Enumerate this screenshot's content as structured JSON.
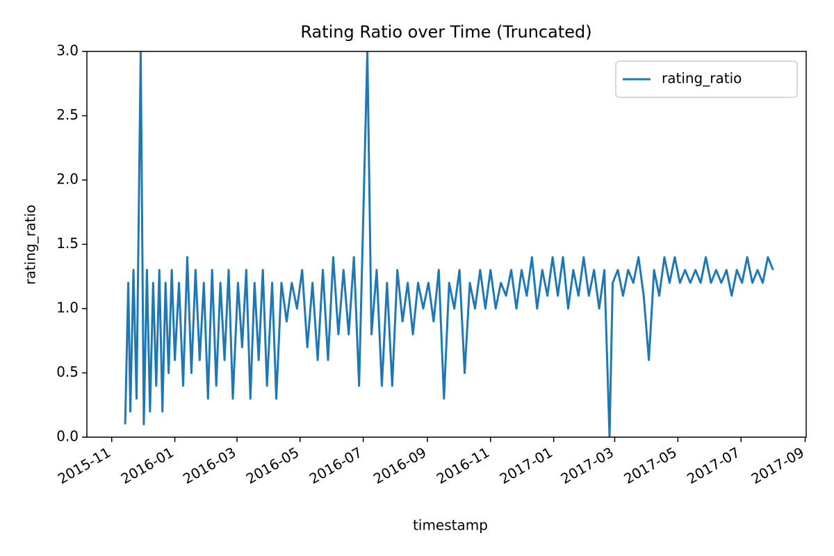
{
  "chart_data": {
    "type": "line",
    "title": "Rating Ratio over Time (Truncated)",
    "x_label": "timestamp",
    "y_label": "rating_ratio",
    "x": [
      "2015-11-14",
      "2015-11-17",
      "2015-11-19",
      "2015-11-22",
      "2015-11-25",
      "2015-11-29",
      "2015-12-02",
      "2015-12-05",
      "2015-12-08",
      "2015-12-11",
      "2015-12-14",
      "2015-12-17",
      "2015-12-20",
      "2015-12-23",
      "2015-12-26",
      "2015-12-29",
      "2016-01-01",
      "2016-01-05",
      "2016-01-09",
      "2016-01-13",
      "2016-01-17",
      "2016-01-21",
      "2016-01-25",
      "2016-01-29",
      "2016-02-02",
      "2016-02-06",
      "2016-02-10",
      "2016-02-14",
      "2016-02-18",
      "2016-02-22",
      "2016-02-26",
      "2016-03-02",
      "2016-03-06",
      "2016-03-10",
      "2016-03-14",
      "2016-03-18",
      "2016-03-22",
      "2016-03-26",
      "2016-03-30",
      "2016-04-04",
      "2016-04-08",
      "2016-04-13",
      "2016-04-18",
      "2016-04-23",
      "2016-04-28",
      "2016-05-03",
      "2016-05-08",
      "2016-05-13",
      "2016-05-18",
      "2016-05-23",
      "2016-05-28",
      "2016-06-02",
      "2016-06-07",
      "2016-06-12",
      "2016-06-17",
      "2016-06-22",
      "2016-06-27",
      "2016-07-05",
      "2016-07-09",
      "2016-07-14",
      "2016-07-19",
      "2016-07-24",
      "2016-07-29",
      "2016-08-03",
      "2016-08-08",
      "2016-08-13",
      "2016-08-18",
      "2016-08-23",
      "2016-08-28",
      "2016-09-02",
      "2016-09-07",
      "2016-09-12",
      "2016-09-17",
      "2016-09-22",
      "2016-09-27",
      "2016-10-02",
      "2016-10-07",
      "2016-10-12",
      "2016-10-17",
      "2016-10-22",
      "2016-10-27",
      "2016-11-01",
      "2016-11-06",
      "2016-11-11",
      "2016-11-16",
      "2016-11-21",
      "2016-11-26",
      "2016-12-01",
      "2016-12-06",
      "2016-12-11",
      "2016-12-16",
      "2016-12-21",
      "2016-12-26",
      "2016-12-31",
      "2017-01-05",
      "2017-01-10",
      "2017-01-15",
      "2017-01-20",
      "2017-01-25",
      "2017-01-30",
      "2017-02-04",
      "2017-02-09",
      "2017-02-14",
      "2017-02-19",
      "2017-02-24",
      "2017-02-27",
      "2017-03-04",
      "2017-03-09",
      "2017-03-14",
      "2017-03-19",
      "2017-03-24",
      "2017-03-29",
      "2017-04-03",
      "2017-04-08",
      "2017-04-13",
      "2017-04-18",
      "2017-04-23",
      "2017-04-28",
      "2017-05-03",
      "2017-05-08",
      "2017-05-13",
      "2017-05-18",
      "2017-05-23",
      "2017-05-28",
      "2017-06-02",
      "2017-06-07",
      "2017-06-12",
      "2017-06-17",
      "2017-06-22",
      "2017-06-27",
      "2017-07-02",
      "2017-07-07",
      "2017-07-12",
      "2017-07-17",
      "2017-07-22",
      "2017-07-27",
      "2017-08-01"
    ],
    "series": [
      {
        "name": "rating_ratio",
        "color": "#1f77b4",
        "values": [
          0.1,
          1.2,
          0.2,
          1.3,
          0.3,
          3.0,
          0.1,
          1.3,
          0.2,
          1.2,
          0.4,
          1.3,
          0.2,
          1.2,
          0.5,
          1.3,
          0.6,
          1.2,
          0.4,
          1.4,
          0.5,
          1.3,
          0.6,
          1.2,
          0.3,
          1.3,
          0.4,
          1.2,
          0.6,
          1.3,
          0.3,
          1.2,
          0.7,
          1.3,
          0.3,
          1.2,
          0.6,
          1.3,
          0.4,
          1.2,
          0.3,
          1.2,
          0.9,
          1.2,
          1.0,
          1.3,
          0.7,
          1.2,
          0.6,
          1.3,
          0.6,
          1.4,
          0.8,
          1.3,
          0.8,
          1.4,
          0.4,
          3.0,
          0.8,
          1.3,
          0.4,
          1.2,
          0.4,
          1.3,
          0.9,
          1.2,
          0.8,
          1.2,
          1.0,
          1.2,
          0.9,
          1.3,
          0.3,
          1.2,
          1.0,
          1.3,
          0.5,
          1.2,
          1.0,
          1.3,
          1.0,
          1.3,
          1.0,
          1.2,
          1.1,
          1.3,
          1.0,
          1.3,
          1.1,
          1.4,
          1.0,
          1.3,
          1.1,
          1.4,
          1.1,
          1.4,
          1.0,
          1.3,
          1.1,
          1.4,
          1.1,
          1.3,
          1.0,
          1.3,
          0.0,
          1.2,
          1.3,
          1.1,
          1.3,
          1.2,
          1.4,
          1.1,
          0.6,
          1.3,
          1.1,
          1.4,
          1.2,
          1.4,
          1.2,
          1.3,
          1.2,
          1.3,
          1.2,
          1.4,
          1.2,
          1.3,
          1.2,
          1.3,
          1.1,
          1.3,
          1.2,
          1.4,
          1.2,
          1.3,
          1.2,
          1.4,
          1.3
        ]
      }
    ],
    "xlim": [
      "2015-10-08",
      "2017-09-02"
    ],
    "xticks": [
      "2015-11",
      "2016-01",
      "2016-03",
      "2016-05",
      "2016-07",
      "2016-09",
      "2016-11",
      "2017-01",
      "2017-03",
      "2017-05",
      "2017-07",
      "2017-09"
    ],
    "ylim": [
      0,
      3
    ],
    "yticks": [
      {
        "value": 0,
        "label": "0.0"
      },
      {
        "value": 0.5,
        "label": "0.5"
      },
      {
        "value": 1,
        "label": "1.0"
      },
      {
        "value": 1.5,
        "label": "1.5"
      },
      {
        "value": 2,
        "label": "2.0"
      },
      {
        "value": 2.5,
        "label": "2.5"
      },
      {
        "value": 3,
        "label": "3.0"
      }
    ],
    "legend": "upper right",
    "grid": false
  }
}
